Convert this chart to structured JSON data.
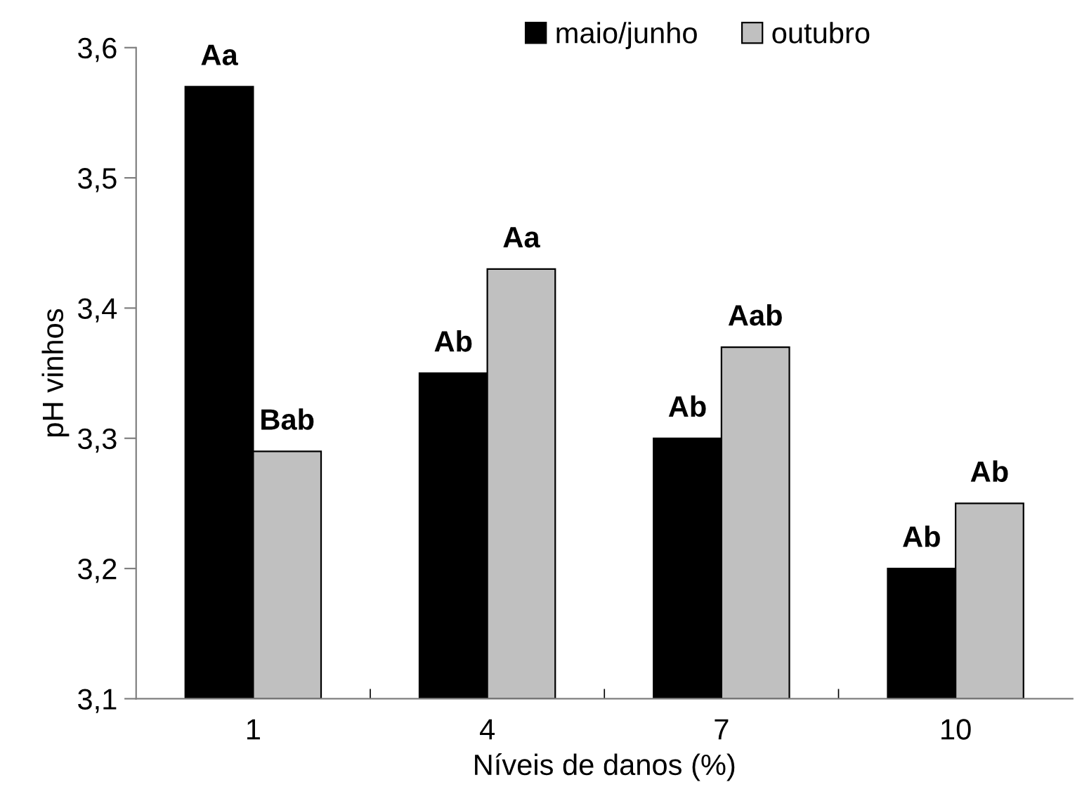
{
  "chart_data": {
    "type": "bar",
    "xlabel": "Níveis de danos (%)",
    "ylabel": "pH vinhos",
    "categories": [
      "1",
      "4",
      "7",
      "10"
    ],
    "series": [
      {
        "name": "maio/junho",
        "color": "#000000",
        "values": [
          3.57,
          3.35,
          3.3,
          3.2
        ],
        "value_labels": [
          "Aa",
          "Ab",
          "Ab",
          "Ab"
        ]
      },
      {
        "name": "outubro",
        "color": "#c0c0c0",
        "values": [
          3.29,
          3.43,
          3.37,
          3.25
        ],
        "value_labels": [
          "Bab",
          "Aa",
          "Aab",
          "Ab"
        ]
      }
    ],
    "ylim": [
      3.1,
      3.6
    ],
    "yticks": [
      {
        "value": 3.1,
        "label": "3,1"
      },
      {
        "value": 3.2,
        "label": "3,2"
      },
      {
        "value": 3.3,
        "label": "3,3"
      },
      {
        "value": 3.4,
        "label": "3,4"
      },
      {
        "value": 3.5,
        "label": "3,5"
      },
      {
        "value": 3.6,
        "label": "3,6"
      }
    ],
    "grid": false,
    "legend": "top"
  }
}
